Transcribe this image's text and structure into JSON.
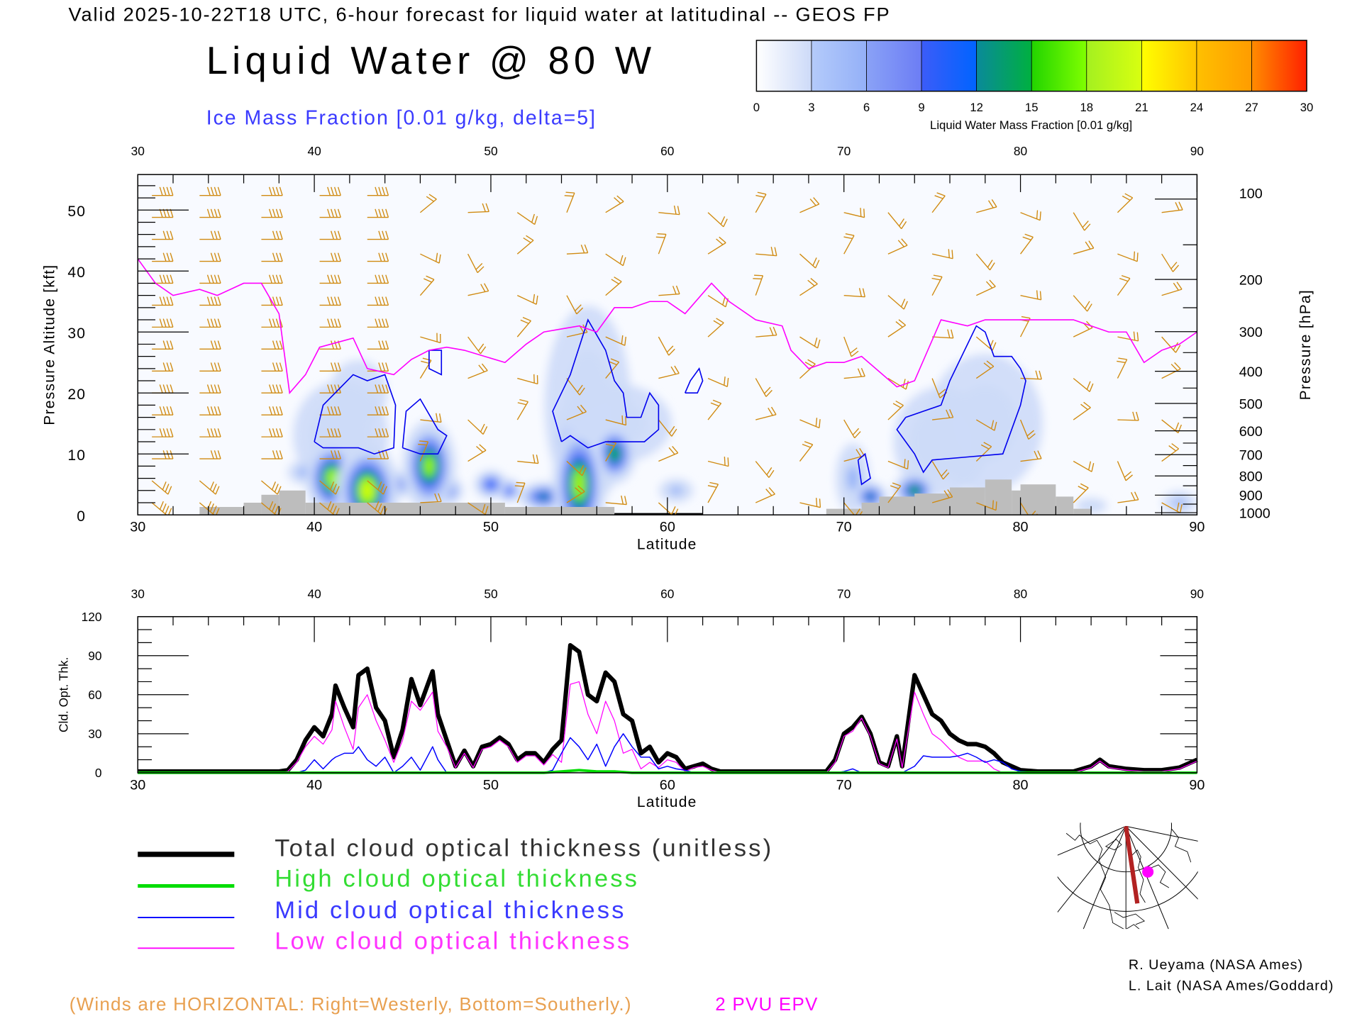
{
  "header": {
    "title": "Valid 2025-10-22T18 UTC, 6-hour forecast for liquid water at latitudinal -- GEOS FP",
    "main_title": "Liquid Water @ 80 W",
    "ice_label": "Ice Mass Fraction [0.01 g/kg, delta=5]"
  },
  "colorbar": {
    "ticks": [
      "0",
      "3",
      "6",
      "9",
      "12",
      "15",
      "18",
      "21",
      "24",
      "27",
      "30"
    ],
    "label": "Liquid Water Mass Fraction [0.01 g/kg]",
    "colors": [
      [
        "#ffffff",
        "#cddaf8"
      ],
      [
        "#b4cbfa",
        "#94b0f8"
      ],
      [
        "#8aa2f6",
        "#6c7df5"
      ],
      [
        "#3c5cf8",
        "#0064ff"
      ],
      [
        "#0a8a9a",
        "#00b040"
      ],
      [
        "#22d400",
        "#80ff00"
      ],
      [
        "#a4f020",
        "#d8ff10"
      ],
      [
        "#ffff00",
        "#ffc400"
      ],
      [
        "#ffc000",
        "#ff9c00"
      ],
      [
        "#ff8c00",
        "#ff2000"
      ]
    ]
  },
  "legend": {
    "total": "Total cloud optical thickness (unitless)",
    "high": "High cloud optical thickness",
    "mid": "Mid cloud optical thickness",
    "low": "Low cloud optical thickness",
    "colors": {
      "total": "#000000",
      "high": "#00dd00",
      "mid": "#0000ff",
      "low": "#ff00ff"
    }
  },
  "footer": {
    "winds_note": "(Winds are HORIZONTAL: Right=Westerly, Bottom=Southerly.)",
    "pv_label": "2 PVU EPV",
    "credit1": "R. Ueyama (NASA Ames)",
    "credit2": "L. Lait (NASA Ames/Goddard)",
    "colors": {
      "winds": "#e0a040",
      "pv": "#ff00ff"
    }
  },
  "chart_data": [
    {
      "type": "heatmap",
      "title": "Liquid Water @ 80 W",
      "xlabel": "Latitude",
      "ylabel": "Pressure Altitude [kft]",
      "ylabel_right": "Pressure [hPa]",
      "xlim": [
        30,
        90
      ],
      "ylim": [
        0,
        56
      ],
      "x_ticks": [
        "30",
        "40",
        "50",
        "60",
        "70",
        "80",
        "90"
      ],
      "y_ticks": [
        "0",
        "10",
        "20",
        "30",
        "40",
        "50"
      ],
      "pressure_ticks": [
        "100",
        "200",
        "300",
        "400",
        "500",
        "600",
        "700",
        "800",
        "900",
        "1000"
      ],
      "liquid_water_cells": [
        [
          41,
          6,
          20,
          0.6,
          2.5
        ],
        [
          43,
          4,
          22,
          0.7,
          3
        ],
        [
          46.5,
          8,
          19,
          0.6,
          3
        ],
        [
          47.5,
          4,
          12,
          0.4,
          1
        ],
        [
          44.5,
          5,
          10,
          0.6,
          1
        ],
        [
          39.5,
          7,
          6,
          0.5,
          1
        ],
        [
          41.5,
          13,
          4,
          1.5,
          5
        ],
        [
          42.5,
          20,
          2,
          1.2,
          4
        ],
        [
          54.5,
          11,
          16,
          0.4,
          2
        ],
        [
          55,
          5,
          20,
          0.6,
          4
        ],
        [
          57,
          10,
          16,
          0.5,
          2
        ],
        [
          53,
          3,
          14,
          0.6,
          1
        ],
        [
          51,
          4,
          12,
          0.3,
          0.8
        ],
        [
          50,
          5,
          12,
          0.4,
          1
        ],
        [
          55.5,
          18,
          3,
          1.5,
          10
        ],
        [
          57,
          15,
          3,
          2,
          4
        ],
        [
          60.5,
          4,
          5,
          0.5,
          1
        ],
        [
          71.5,
          3,
          14,
          0.4,
          1
        ],
        [
          74,
          4,
          16,
          0.5,
          1.2
        ],
        [
          75.5,
          12,
          4,
          1.5,
          5
        ],
        [
          78,
          15,
          3,
          2,
          7
        ],
        [
          70.5,
          6,
          5,
          0.5,
          3
        ],
        [
          84,
          1.5,
          4,
          0.5,
          0.7
        ],
        [
          89,
          2,
          5,
          0.5,
          1
        ]
      ],
      "ice_contours": [
        [
          [
            40,
            12
          ],
          [
            40.5,
            18
          ],
          [
            42.2,
            23
          ],
          [
            43,
            22
          ],
          [
            44,
            23
          ],
          [
            44.6,
            18
          ],
          [
            44.5,
            11
          ],
          [
            43.4,
            10
          ],
          [
            42.5,
            11
          ],
          [
            41.4,
            11
          ],
          [
            40.5,
            11
          ],
          [
            40,
            12
          ]
        ],
        [
          [
            45,
            11
          ],
          [
            45.2,
            17
          ],
          [
            46,
            19
          ],
          [
            47,
            14
          ],
          [
            47.5,
            13
          ],
          [
            47,
            10
          ],
          [
            46,
            10
          ],
          [
            45,
            11
          ]
        ],
        [
          [
            46.5,
            27
          ],
          [
            47.2,
            27
          ],
          [
            47.2,
            23
          ],
          [
            46.5,
            24
          ],
          [
            46.5,
            27
          ]
        ],
        [
          [
            54,
            12
          ],
          [
            53.5,
            17
          ],
          [
            54.5,
            23
          ],
          [
            55.5,
            32
          ],
          [
            56.5,
            27
          ],
          [
            57,
            22
          ],
          [
            57.5,
            20
          ],
          [
            57.7,
            16
          ],
          [
            58.5,
            16
          ],
          [
            59,
            20
          ],
          [
            59.5,
            18
          ],
          [
            59.5,
            14
          ],
          [
            58.7,
            12
          ],
          [
            56.5,
            12
          ],
          [
            55.5,
            11
          ],
          [
            55,
            12
          ],
          [
            54.5,
            13
          ],
          [
            54,
            12
          ]
        ],
        [
          [
            61,
            20
          ],
          [
            61.3,
            22
          ],
          [
            61.8,
            24
          ],
          [
            62,
            22
          ],
          [
            61.7,
            20
          ],
          [
            61,
            20
          ]
        ],
        [
          [
            73.5,
            16
          ],
          [
            74.5,
            17
          ],
          [
            75.5,
            18
          ],
          [
            76,
            22
          ],
          [
            77.5,
            31
          ],
          [
            78,
            30
          ],
          [
            78.5,
            26
          ],
          [
            79.5,
            26
          ],
          [
            80,
            24
          ],
          [
            80.3,
            22
          ],
          [
            80,
            18
          ],
          [
            79,
            10
          ],
          [
            77,
            9.5
          ],
          [
            75,
            9
          ],
          [
            74.5,
            7
          ],
          [
            74,
            10
          ],
          [
            73,
            14
          ],
          [
            73.5,
            16
          ]
        ],
        [
          [
            70.8,
            9
          ],
          [
            71.2,
            10
          ],
          [
            71.5,
            6
          ],
          [
            71,
            5
          ],
          [
            70.8,
            9
          ]
        ]
      ],
      "pv_2pvu_line": [
        [
          30,
          42
        ],
        [
          31,
          38
        ],
        [
          32,
          36
        ],
        [
          33.5,
          37
        ],
        [
          34.5,
          36
        ],
        [
          36,
          38
        ],
        [
          37,
          38
        ],
        [
          38,
          33
        ],
        [
          38.6,
          20
        ],
        [
          39.5,
          23
        ],
        [
          40.3,
          27.5
        ],
        [
          42.2,
          29
        ],
        [
          43,
          24
        ],
        [
          44.5,
          23
        ],
        [
          45.5,
          25.5
        ],
        [
          46.5,
          27
        ],
        [
          47.5,
          27.5
        ],
        [
          48.5,
          27
        ],
        [
          50.8,
          25
        ],
        [
          52,
          28
        ],
        [
          53,
          30
        ],
        [
          54,
          30.5
        ],
        [
          55,
          31
        ],
        [
          56,
          30
        ],
        [
          57,
          34
        ],
        [
          58,
          34
        ],
        [
          59,
          35
        ],
        [
          60,
          35
        ],
        [
          61,
          33
        ],
        [
          62.5,
          38
        ],
        [
          63.5,
          35
        ],
        [
          65,
          32
        ],
        [
          66.5,
          31
        ],
        [
          67,
          27
        ],
        [
          68,
          24
        ],
        [
          69,
          25
        ],
        [
          70,
          25
        ],
        [
          71,
          26
        ],
        [
          73,
          21
        ],
        [
          74,
          22
        ],
        [
          75.5,
          32
        ],
        [
          77,
          31
        ],
        [
          78,
          32
        ],
        [
          80,
          32
        ],
        [
          81,
          32
        ],
        [
          83,
          32
        ],
        [
          85,
          30
        ],
        [
          86,
          30
        ],
        [
          87,
          25
        ],
        [
          88,
          27
        ],
        [
          89,
          28
        ],
        [
          90,
          30
        ]
      ],
      "terrain_steps_kft": [
        [
          33.5,
          36,
          1.3
        ],
        [
          36,
          37,
          2
        ],
        [
          37,
          38,
          3.3
        ],
        [
          38,
          39.5,
          4
        ],
        [
          39.5,
          50.8,
          2
        ],
        [
          50.8,
          57,
          1.3
        ],
        [
          57,
          62,
          0.2
        ],
        [
          69,
          71,
          1
        ],
        [
          71,
          72,
          2
        ],
        [
          72,
          74,
          3
        ],
        [
          74,
          76,
          3.5
        ],
        [
          76,
          78,
          4.5
        ],
        [
          78,
          79.5,
          5.8
        ],
        [
          79.5,
          80,
          4
        ],
        [
          80,
          82,
          5
        ],
        [
          82,
          83,
          3
        ],
        [
          83,
          84,
          1
        ]
      ]
    },
    {
      "type": "line",
      "xlabel": "Latitude",
      "ylabel": "Cld. Opt. Thk.",
      "xlim": [
        30,
        90
      ],
      "ylim": [
        0,
        120
      ],
      "x_ticks": [
        "30",
        "40",
        "50",
        "60",
        "70",
        "80",
        "90"
      ],
      "y_ticks": [
        "0",
        "30",
        "60",
        "90",
        "120"
      ],
      "x": [
        30,
        38,
        38.5,
        39,
        39.5,
        40,
        40.5,
        41,
        41.2,
        41.7,
        42.2,
        42.5,
        43,
        43.5,
        44,
        44.5,
        45,
        45.5,
        46,
        46.7,
        47,
        47.5,
        48,
        48.5,
        49,
        49.5,
        50,
        50.5,
        51,
        51.5,
        52,
        52.5,
        53,
        53.5,
        54,
        54.5,
        55,
        55.5,
        56,
        56.5,
        57,
        57.5,
        58,
        58.5,
        59,
        59.5,
        60,
        60.5,
        61,
        61.5,
        62,
        62.5,
        63,
        69,
        69.5,
        70,
        70.5,
        71,
        71.5,
        72,
        72.5,
        73,
        73.3,
        74,
        74.5,
        75,
        75.5,
        76,
        76.5,
        77,
        77.5,
        78,
        78.5,
        79,
        79.5,
        80,
        81,
        83,
        84,
        84.5,
        85,
        86,
        87,
        88,
        89,
        90
      ],
      "series": [
        {
          "name": "Total cloud optical thickness",
          "values": [
            1,
            1,
            2,
            10,
            25,
            35,
            28,
            45,
            67,
            50,
            35,
            75,
            80,
            50,
            40,
            12,
            33,
            72,
            52,
            78,
            45,
            25,
            5,
            17,
            5,
            20,
            22,
            27,
            22,
            10,
            15,
            15,
            8,
            18,
            25,
            98,
            93,
            60,
            55,
            77,
            70,
            45,
            40,
            15,
            20,
            8,
            15,
            12,
            3,
            5,
            7,
            3,
            1,
            1,
            10,
            30,
            35,
            43,
            30,
            8,
            5,
            28,
            5,
            75,
            60,
            45,
            40,
            30,
            25,
            22,
            22,
            20,
            15,
            8,
            5,
            2,
            1,
            1,
            5,
            10,
            5,
            3,
            2,
            2,
            4,
            10
          ]
        },
        {
          "name": "Low cloud optical thickness",
          "values": [
            0,
            0,
            1,
            8,
            20,
            28,
            22,
            33,
            55,
            35,
            18,
            50,
            60,
            40,
            25,
            8,
            25,
            55,
            48,
            62,
            32,
            20,
            4,
            15,
            4,
            18,
            20,
            25,
            20,
            8,
            13,
            13,
            6,
            14,
            8,
            68,
            70,
            45,
            30,
            55,
            40,
            15,
            18,
            3,
            8,
            4,
            10,
            8,
            1,
            4,
            5,
            2,
            0,
            0,
            8,
            28,
            32,
            42,
            28,
            7,
            4,
            26,
            4,
            62,
            45,
            30,
            25,
            18,
            12,
            9,
            9,
            9,
            3,
            0,
            0,
            0,
            0,
            0,
            4,
            9,
            4,
            2,
            1,
            1,
            3,
            9
          ]
        },
        {
          "name": "Mid cloud optical thickness",
          "values": [
            0,
            0,
            0,
            0,
            2,
            10,
            3,
            10,
            12,
            15,
            15,
            20,
            10,
            5,
            12,
            0,
            5,
            12,
            2,
            20,
            10,
            0,
            0,
            0,
            0,
            0,
            0,
            0,
            0,
            0,
            0,
            0,
            0,
            2,
            15,
            27,
            20,
            10,
            22,
            5,
            20,
            30,
            20,
            12,
            12,
            3,
            5,
            3,
            2,
            0,
            0,
            0,
            0,
            0,
            0,
            1,
            3,
            0,
            0,
            0,
            0,
            0,
            0,
            5,
            13,
            12,
            12,
            12,
            13,
            15,
            12,
            8,
            10,
            8,
            3,
            1,
            0,
            0,
            0,
            0,
            0,
            0,
            0,
            0,
            0,
            0
          ]
        },
        {
          "name": "High cloud optical thickness",
          "x": [
            30,
            53,
            54,
            55,
            56,
            57,
            58,
            90
          ],
          "values": [
            0,
            0,
            1,
            2,
            1,
            1,
            0,
            0
          ]
        }
      ]
    }
  ]
}
